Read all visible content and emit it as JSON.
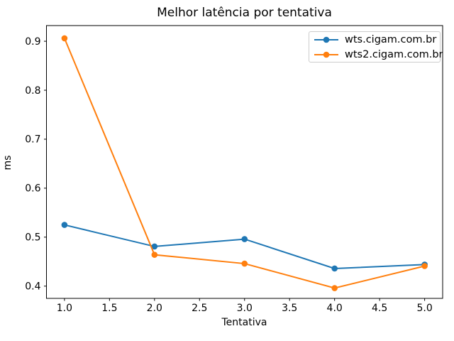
{
  "chart_data": {
    "type": "line",
    "title": "Melhor latência por tentativa",
    "xlabel": "Tentativa",
    "ylabel": "ms",
    "x": [
      1,
      2,
      3,
      4,
      5
    ],
    "series": [
      {
        "name": "wts.cigam.com.br",
        "color": "#1f77b4",
        "values": [
          0.525,
          0.481,
          0.496,
          0.436,
          0.444
        ]
      },
      {
        "name": "wts2.cigam.com.br",
        "color": "#ff7f0e",
        "values": [
          0.906,
          0.464,
          0.446,
          0.396,
          0.441
        ]
      }
    ],
    "xlim": [
      0.8,
      5.2
    ],
    "ylim": [
      0.375,
      0.932
    ],
    "xticks": {
      "values": [
        1.0,
        1.5,
        2.0,
        2.5,
        3.0,
        3.5,
        4.0,
        4.5,
        5.0
      ],
      "labels": [
        "1.0",
        "1.5",
        "2.0",
        "2.5",
        "3.0",
        "3.5",
        "4.0",
        "4.5",
        "5.0"
      ]
    },
    "yticks": {
      "values": [
        0.4,
        0.5,
        0.6,
        0.7,
        0.8,
        0.9
      ],
      "labels": [
        "0.4",
        "0.5",
        "0.6",
        "0.7",
        "0.8",
        "0.9"
      ]
    },
    "grid": false,
    "legend_position": "upper right",
    "marker": "circle",
    "spine_color": "#000000",
    "background_color": "#ffffff"
  }
}
